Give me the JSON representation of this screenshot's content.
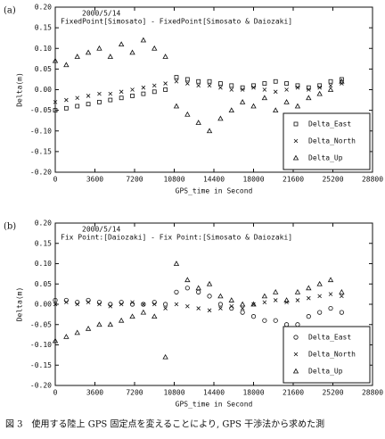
{
  "chart_data": [
    {
      "type": "scatter",
      "panel_label": "(a)",
      "title": "2000/5/14",
      "subtitle": "FixedPoint[Simosato] - FixedPoint[Simosato & Daiozaki]",
      "x_label": "GPS_time in Second",
      "y_label": "Delta(m)",
      "xlim": [
        0,
        28800
      ],
      "xticks": [
        0,
        3600,
        7200,
        10800,
        14400,
        18000,
        21600,
        25200,
        28800
      ],
      "ylim": [
        -0.2,
        0.2
      ],
      "yticks": [
        {
          "value": -0.2,
          "label": "-0.20"
        },
        {
          "value": -0.15,
          "label": "-0.15"
        },
        {
          "value": -0.1,
          "label": "-0.10"
        },
        {
          "value": -0.05,
          "label": "-0.05"
        },
        {
          "value": 0,
          "label": "0.00"
        },
        {
          "value": 0.05,
          "label": "0.05"
        },
        {
          "value": 0.1,
          "label": "0.10"
        },
        {
          "value": 0.15,
          "label": "0.15"
        },
        {
          "value": 0.2,
          "label": "0.20"
        }
      ],
      "x": [
        0,
        1000,
        2000,
        3000,
        4000,
        5000,
        6000,
        7000,
        8000,
        9000,
        10000,
        11000,
        12000,
        13000,
        14000,
        15000,
        16000,
        17000,
        18000,
        19000,
        20000,
        21000,
        22000,
        23000,
        24000,
        25000,
        26000
      ],
      "legend": "lower right",
      "series": [
        {
          "name": "Delta_East",
          "marker": "square",
          "color": "#111111",
          "values": [
            -0.05,
            -0.045,
            -0.04,
            -0.035,
            -0.03,
            -0.025,
            -0.02,
            -0.015,
            -0.01,
            -0.005,
            0.0,
            0.03,
            0.025,
            0.02,
            0.02,
            0.015,
            0.01,
            0.005,
            0.01,
            0.015,
            0.02,
            0.015,
            0.01,
            0.005,
            0.01,
            0.02,
            0.025
          ]
        },
        {
          "name": "Delta_North",
          "marker": "x",
          "color": "#111111",
          "values": [
            -0.03,
            -0.025,
            -0.02,
            -0.015,
            -0.01,
            -0.01,
            -0.005,
            0.0,
            0.005,
            0.01,
            0.015,
            0.02,
            0.015,
            0.01,
            0.01,
            0.005,
            0.0,
            0.0,
            0.005,
            0.0,
            -0.005,
            0.0,
            0.005,
            0.0,
            0.005,
            0.01,
            0.015
          ]
        },
        {
          "name": "Delta_Up",
          "marker": "triangle",
          "color": "#111111",
          "values": [
            0.07,
            0.06,
            0.08,
            0.09,
            0.1,
            0.08,
            0.11,
            0.09,
            0.12,
            0.1,
            0.08,
            -0.04,
            -0.06,
            -0.08,
            -0.1,
            -0.07,
            -0.05,
            -0.03,
            -0.04,
            -0.02,
            -0.05,
            -0.03,
            -0.04,
            -0.02,
            -0.01,
            0.0,
            0.02
          ]
        }
      ]
    },
    {
      "type": "scatter",
      "panel_label": "(b)",
      "title": "2000/5/14",
      "subtitle": "Fix Point:[Daiozaki] - Fix Point:[Simosato & Daiozaki]",
      "x_label": "GPS_time in Second",
      "y_label": "Delta(m)",
      "xlim": [
        0,
        28800
      ],
      "xticks": [
        0,
        3600,
        7200,
        10800,
        14400,
        18000,
        21600,
        25200,
        28800
      ],
      "ylim": [
        -0.2,
        0.2
      ],
      "yticks": [
        {
          "value": -0.2,
          "label": "-0.20"
        },
        {
          "value": -0.15,
          "label": "-0.15"
        },
        {
          "value": -0.1,
          "label": "-0.10"
        },
        {
          "value": -0.05,
          "label": "-0.05"
        },
        {
          "value": 0,
          "label": "0.00"
        },
        {
          "value": 0.05,
          "label": "0.05"
        },
        {
          "value": 0.1,
          "label": "0.10"
        },
        {
          "value": 0.15,
          "label": "0.15"
        },
        {
          "value": 0.2,
          "label": "0.20"
        }
      ],
      "x": [
        0,
        1000,
        2000,
        3000,
        4000,
        5000,
        6000,
        7000,
        8000,
        9000,
        10000,
        11000,
        12000,
        13000,
        14000,
        15000,
        16000,
        17000,
        18000,
        19000,
        20000,
        21000,
        22000,
        23000,
        24000,
        25000,
        26000
      ],
      "legend": "lower right",
      "series": [
        {
          "name": "Delta_East",
          "marker": "circle",
          "color": "#111111",
          "values": [
            0.01,
            0.01,
            0.005,
            0.01,
            0.005,
            0.0,
            0.005,
            0.0,
            0.0,
            0.005,
            0.0,
            0.03,
            0.04,
            0.03,
            0.02,
            0.0,
            -0.01,
            -0.02,
            -0.03,
            -0.04,
            -0.04,
            -0.05,
            -0.05,
            -0.03,
            -0.02,
            -0.01,
            -0.02
          ]
        },
        {
          "name": "Delta_North",
          "marker": "x",
          "color": "#111111",
          "values": [
            0.0,
            0.005,
            0.0,
            0.005,
            0.0,
            -0.005,
            0.0,
            0.005,
            0.0,
            0.0,
            -0.01,
            0.0,
            -0.005,
            -0.01,
            -0.015,
            -0.01,
            -0.005,
            -0.01,
            0.0,
            0.005,
            0.01,
            0.005,
            0.01,
            0.015,
            0.02,
            0.025,
            0.02
          ]
        },
        {
          "name": "Delta_Up",
          "marker": "triangle",
          "color": "#111111",
          "values": [
            -0.09,
            -0.08,
            -0.07,
            -0.06,
            -0.05,
            -0.05,
            -0.04,
            -0.03,
            -0.02,
            -0.03,
            -0.13,
            0.1,
            0.06,
            0.04,
            0.05,
            0.02,
            0.01,
            0.0,
            0.0,
            0.02,
            0.03,
            0.01,
            0.03,
            0.04,
            0.05,
            0.06,
            0.03
          ]
        }
      ]
    }
  ],
  "caption": "図 3　使用する陸上 GPS 固定点を変えることにより, GPS 干渉法から求めた測"
}
